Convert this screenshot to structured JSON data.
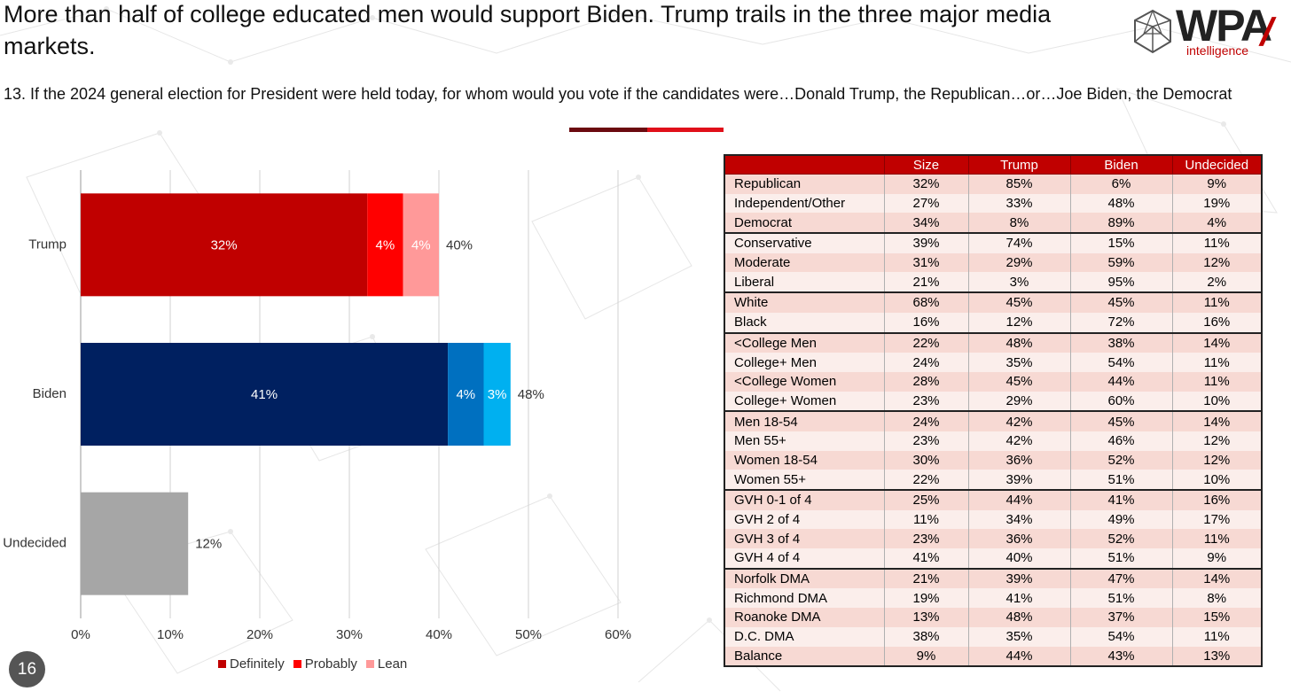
{
  "headline": "More than half of college educated men would support Biden. Trump trails in the three major media markets.",
  "question": "13. If the 2024 general election for President were held today, for whom would you vote if the candidates were…Donald Trump, the Republican…or…Joe Biden, the Democrat",
  "logo": {
    "wordmark": "WPA",
    "sub": "intelligence"
  },
  "page_number": "16",
  "colors": {
    "accent_dark": "#6b0a10",
    "accent_red": "#e0101a",
    "definitely": "#c00000",
    "probably": "#ff0000",
    "lean": "#ff9999",
    "biden_definitely": "#002060",
    "biden_probably": "#0070c0",
    "biden_lean": "#00b0f0",
    "undecided": "#a6a6a6",
    "table_header": "#c00000"
  },
  "legend": [
    {
      "label": "Definitely",
      "color": "#c00000"
    },
    {
      "label": "Probably",
      "color": "#ff0000"
    },
    {
      "label": "Lean",
      "color": "#ff9999"
    }
  ],
  "chart_data": {
    "type": "bar",
    "orientation": "horizontal",
    "stacked": true,
    "categories": [
      "Trump",
      "Biden",
      "Undecided"
    ],
    "series": [
      {
        "name": "Definitely",
        "values": [
          32,
          41,
          12
        ]
      },
      {
        "name": "Probably",
        "values": [
          4,
          4,
          0
        ]
      },
      {
        "name": "Lean",
        "values": [
          4,
          3,
          0
        ]
      }
    ],
    "segment_labels": [
      [
        "32%",
        "4%",
        "4%"
      ],
      [
        "41%",
        "4%",
        "3%"
      ],
      [
        "",
        "",
        ""
      ]
    ],
    "totals": [
      40,
      48,
      12
    ],
    "total_labels": [
      "40%",
      "48%",
      "12%"
    ],
    "xlim": [
      0,
      60
    ],
    "xticks": [
      "0%",
      "10%",
      "20%",
      "30%",
      "40%",
      "50%",
      "60%"
    ],
    "grid": true,
    "legend_position": "bottom"
  },
  "table": {
    "headers": [
      "",
      "Size",
      "Trump",
      "Biden",
      "Undecided"
    ],
    "groups": [
      [
        [
          "Republican",
          "32%",
          "85%",
          "6%",
          "9%"
        ],
        [
          "Independent/Other",
          "27%",
          "33%",
          "48%",
          "19%"
        ],
        [
          "Democrat",
          "34%",
          "8%",
          "89%",
          "4%"
        ]
      ],
      [
        [
          "Conservative",
          "39%",
          "74%",
          "15%",
          "11%"
        ],
        [
          "Moderate",
          "31%",
          "29%",
          "59%",
          "12%"
        ],
        [
          "Liberal",
          "21%",
          "3%",
          "95%",
          "2%"
        ]
      ],
      [
        [
          "White",
          "68%",
          "45%",
          "45%",
          "11%"
        ],
        [
          "Black",
          "16%",
          "12%",
          "72%",
          "16%"
        ]
      ],
      [
        [
          "<College Men",
          "22%",
          "48%",
          "38%",
          "14%"
        ],
        [
          "College+ Men",
          "24%",
          "35%",
          "54%",
          "11%"
        ],
        [
          "<College Women",
          "28%",
          "45%",
          "44%",
          "11%"
        ],
        [
          "College+ Women",
          "23%",
          "29%",
          "60%",
          "10%"
        ]
      ],
      [
        [
          "Men 18-54",
          "24%",
          "42%",
          "45%",
          "14%"
        ],
        [
          "Men 55+",
          "23%",
          "42%",
          "46%",
          "12%"
        ],
        [
          "Women 18-54",
          "30%",
          "36%",
          "52%",
          "12%"
        ],
        [
          "Women 55+",
          "22%",
          "39%",
          "51%",
          "10%"
        ]
      ],
      [
        [
          "GVH 0-1 of 4",
          "25%",
          "44%",
          "41%",
          "16%"
        ],
        [
          "GVH 2 of 4",
          "11%",
          "34%",
          "49%",
          "17%"
        ],
        [
          "GVH 3 of 4",
          "23%",
          "36%",
          "52%",
          "11%"
        ],
        [
          "GVH 4 of 4",
          "41%",
          "40%",
          "51%",
          "9%"
        ]
      ],
      [
        [
          "Norfolk DMA",
          "21%",
          "39%",
          "47%",
          "14%"
        ],
        [
          "Richmond DMA",
          "19%",
          "41%",
          "51%",
          "8%"
        ],
        [
          "Roanoke DMA",
          "13%",
          "48%",
          "37%",
          "15%"
        ],
        [
          "D.C. DMA",
          "38%",
          "35%",
          "54%",
          "11%"
        ],
        [
          "Balance",
          "9%",
          "44%",
          "43%",
          "13%"
        ]
      ]
    ]
  }
}
